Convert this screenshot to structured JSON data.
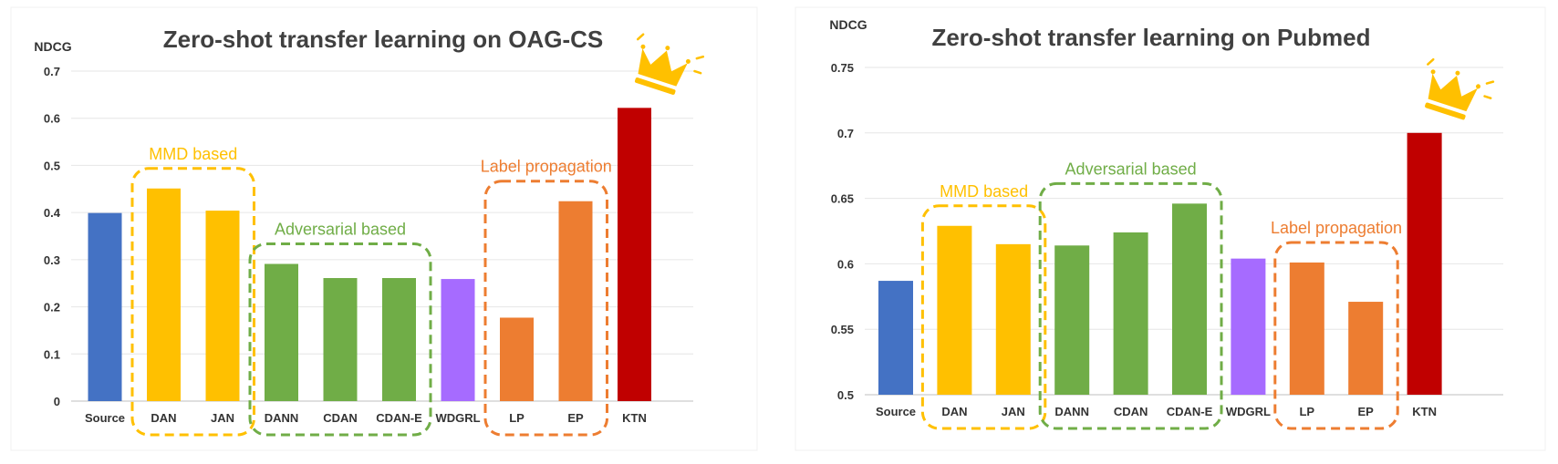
{
  "chart_data": [
    {
      "type": "bar",
      "title": "Zero-shot transfer learning on OAG-CS",
      "ylabel": "NDCG",
      "xlabel": "",
      "ylim": [
        0,
        0.7
      ],
      "yticks": [
        "0",
        "0.1",
        "0.2",
        "0.3",
        "0.4",
        "0.5",
        "0.6",
        "0.7"
      ],
      "categories": [
        "Source",
        "DAN",
        "JAN",
        "DANN",
        "CDAN",
        "CDAN-E",
        "WDGRL",
        "LP",
        "EP",
        "KTN"
      ],
      "values": [
        0.399,
        0.451,
        0.404,
        0.291,
        0.261,
        0.261,
        0.259,
        0.177,
        0.424,
        0.622
      ],
      "colors": [
        "#4472C4",
        "#FFC000",
        "#FFC000",
        "#70AD47",
        "#70AD47",
        "#70AD47",
        "#A66BFF",
        "#ED7D31",
        "#ED7D31",
        "#C00000"
      ],
      "grid": true,
      "groups": [
        {
          "label": "MMD based",
          "members": [
            1,
            2
          ],
          "color": "#FFC000"
        },
        {
          "label": "Adversarial based",
          "members": [
            3,
            5
          ],
          "color": "#70AD47"
        },
        {
          "label": "Label propagation",
          "members": [
            7,
            8
          ],
          "color": "#ED7D31"
        }
      ],
      "highlight": {
        "icon": "crown-icon",
        "category": "KTN"
      }
    },
    {
      "type": "bar",
      "title": "Zero-shot transfer learning on Pubmed",
      "ylabel": "NDCG",
      "xlabel": "",
      "ylim": [
        0.5,
        0.75
      ],
      "yticks": [
        "0.5",
        "0.55",
        "0.6",
        "0.65",
        "0.7",
        "0.75"
      ],
      "categories": [
        "Source",
        "DAN",
        "JAN",
        "DANN",
        "CDAN",
        "CDAN-E",
        "WDGRL",
        "LP",
        "EP",
        "KTN"
      ],
      "values": [
        0.587,
        0.629,
        0.615,
        0.614,
        0.624,
        0.646,
        0.604,
        0.601,
        0.571,
        0.7
      ],
      "colors": [
        "#4472C4",
        "#FFC000",
        "#FFC000",
        "#70AD47",
        "#70AD47",
        "#70AD47",
        "#A66BFF",
        "#ED7D31",
        "#ED7D31",
        "#C00000"
      ],
      "grid": true,
      "groups": [
        {
          "label": "MMD based",
          "members": [
            1,
            2
          ],
          "color": "#FFC000"
        },
        {
          "label": "Adversarial based",
          "members": [
            3,
            5
          ],
          "color": "#70AD47"
        },
        {
          "label": "Label propagation",
          "members": [
            7,
            8
          ],
          "color": "#ED7D31"
        }
      ],
      "highlight": {
        "icon": "crown-icon",
        "category": "KTN"
      }
    }
  ]
}
